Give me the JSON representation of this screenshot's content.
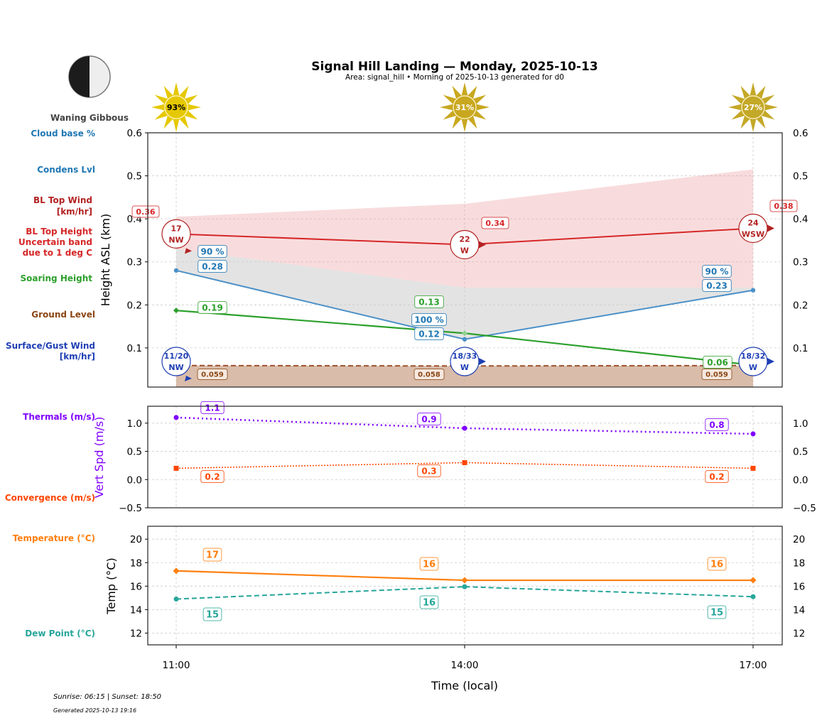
{
  "header": {
    "title": "Signal Hill Landing — Monday, 2025-10-13",
    "subtitle": "Area: signal_hill • Morning of 2025-10-13 generated for d0",
    "moon_phase": "Waning Gibbous"
  },
  "footer": {
    "sun_times": "Sunrise: 06:15 | Sunset: 18:50",
    "generated": "Generated 2025-10-13 19:16"
  },
  "colors": {
    "cloud": "#1f77b4",
    "bl_wind": "#b22222",
    "bl_top": "#d62728",
    "soaring": "#2ca02c",
    "ground": "#8b4513",
    "surface_wind": "#1f3fb4",
    "thermals": "#7f00ff",
    "convergence": "#ff4500",
    "temperature": "#ff7f0e",
    "dewpoint": "#26a69a"
  },
  "sun_icons": [
    {
      "time": "11:00",
      "label": "93%",
      "color": "#e6c800"
    },
    {
      "time": "14:00",
      "label": "31%",
      "color": "#c9a820"
    },
    {
      "time": "17:00",
      "label": "27%",
      "color": "#c4a828"
    }
  ],
  "chart_data": [
    {
      "type": "line",
      "panel": "height",
      "ylabel": "Height ASL (km)",
      "ylim": [
        0.009,
        0.6
      ],
      "yticks": [
        "0.6",
        "0.5",
        "0.4",
        "0.3",
        "0.2",
        "0.1"
      ],
      "ytick_values": [
        0.6,
        0.5,
        0.4,
        0.3,
        0.2,
        0.1
      ],
      "x": [
        "11:00",
        "14:00",
        "17:00"
      ],
      "grid": true,
      "row_labels": {
        "cloud_base": "Cloud base %",
        "condens": "Condens Lvl",
        "bl_wind_1": "BL Top Wind",
        "bl_wind_2": "[km/hr]",
        "bl_top_1": "BL Top Height",
        "bl_top_2": "Uncertain band",
        "bl_top_3": "due to 1 deg C",
        "soaring": "Soaring Height",
        "ground": "Ground Level",
        "surface_1": "Surface/Gust Wind",
        "surface_2": "[km/hr]"
      },
      "series": [
        {
          "name": "BL Top Height",
          "values": [
            0.365,
            0.34,
            0.378
          ],
          "labels": [
            "0.36",
            "0.34",
            "0.38"
          ],
          "band_upper": [
            0.405,
            0.435,
            0.515
          ],
          "band_lower": [
            0.33,
            0.24,
            0.24
          ]
        },
        {
          "name": "Condens Lvl",
          "values": [
            0.28,
            0.12,
            0.234
          ],
          "labels": [
            "0.28",
            "0.12",
            "0.23"
          ],
          "cloud_pct": [
            "90 %",
            "100 %",
            "90 %"
          ],
          "band_upper": [
            0.33,
            0.24,
            0.24
          ]
        },
        {
          "name": "Soaring Height",
          "values": [
            0.187,
            0.134,
            0.06
          ],
          "labels": [
            "0.19",
            "0.13",
            "0.06"
          ]
        },
        {
          "name": "Ground Level",
          "values": [
            0.059,
            0.058,
            0.059
          ],
          "labels": [
            "0.059",
            "0.058",
            "0.059"
          ]
        }
      ],
      "bl_wind": [
        {
          "speed": "17",
          "dir": "NW"
        },
        {
          "speed": "22",
          "dir": "W"
        },
        {
          "speed": "24",
          "dir": "WSW"
        }
      ],
      "surface_wind": [
        {
          "speed": "11/20",
          "dir": "NW"
        },
        {
          "speed": "18/33",
          "dir": "W"
        },
        {
          "speed": "18/32",
          "dir": "W"
        }
      ]
    },
    {
      "type": "line",
      "panel": "vertical_speed",
      "ylabel": "Vert Spd (m/s)",
      "ylim": [
        -0.5,
        1.3
      ],
      "yticks": [
        "1.0",
        "0.5",
        "0.0",
        "−0.5"
      ],
      "ytick_values": [
        1.0,
        0.5,
        0.0,
        -0.5
      ],
      "x": [
        "11:00",
        "14:00",
        "17:00"
      ],
      "grid": true,
      "row_labels": {
        "thermals": "Thermals (m/s)",
        "convergence": "Convergence (m/s)"
      },
      "series": [
        {
          "name": "Thermals (m/s)",
          "values": [
            1.1,
            0.91,
            0.81
          ],
          "labels": [
            "1.1",
            "0.9",
            "0.8"
          ]
        },
        {
          "name": "Convergence (m/s)",
          "values": [
            0.2,
            0.3,
            0.2
          ],
          "labels": [
            "0.2",
            "0.3",
            "0.2"
          ]
        }
      ]
    },
    {
      "type": "line",
      "panel": "temperature",
      "ylabel": "Temp (°C)",
      "xlabel": "Time (local)",
      "ylim": [
        11.0,
        21.1
      ],
      "yticks": [
        "20",
        "18",
        "16",
        "14",
        "12"
      ],
      "ytick_values": [
        20,
        18,
        16,
        14,
        12
      ],
      "x": [
        "11:00",
        "14:00",
        "17:00"
      ],
      "grid": true,
      "row_labels": {
        "temperature": "Temperature (°C)",
        "dewpoint": "Dew Point (°C)"
      },
      "series": [
        {
          "name": "Temperature (°C)",
          "values": [
            17.3,
            16.5,
            16.5
          ],
          "labels": [
            "17",
            "16",
            "16"
          ]
        },
        {
          "name": "Dew Point (°C)",
          "values": [
            14.9,
            15.95,
            15.1
          ],
          "labels": [
            "15",
            "16",
            "15"
          ]
        }
      ]
    }
  ]
}
